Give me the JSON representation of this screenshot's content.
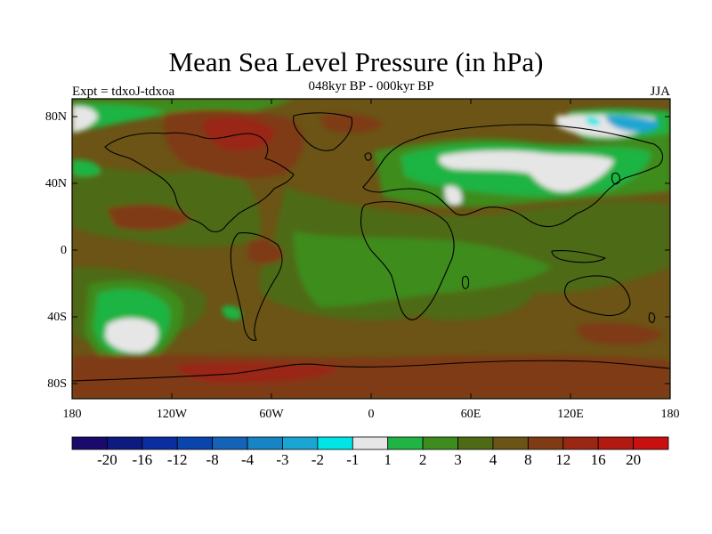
{
  "title": "Mean Sea Level Pressure (in hPa)",
  "subtitle": "048kyr BP - 000kyr BP",
  "left_label": "Expt = tdxoJ-tdxoa",
  "right_label": "JJA",
  "map": {
    "lat_ticks": [
      "80N",
      "40N",
      "0",
      "40S",
      "80S"
    ],
    "lon_ticks": [
      "180",
      "120W",
      "60W",
      "0",
      "60E",
      "120E",
      "180"
    ]
  },
  "colorbar": {
    "colors": [
      "#1a0a6b",
      "#0d1a80",
      "#0a2ea0",
      "#0a44ad",
      "#1463b8",
      "#1784c5",
      "#1aa6d2",
      "#00e5e5",
      "#e6e6e6",
      "#1fb443",
      "#3e8c1e",
      "#4e6a14",
      "#6b5416",
      "#7f3b14",
      "#992713",
      "#b01a10",
      "#c81010"
    ],
    "labels": [
      "-20",
      "-16",
      "-12",
      "-8",
      "-4",
      "-3",
      "-2",
      "-1",
      "1",
      "2",
      "3",
      "4",
      "8",
      "12",
      "16",
      "20"
    ]
  },
  "palette": {
    "ocean_base": "#6b5416",
    "green_dark": "#4e6a14",
    "green_mid": "#3e8c1e",
    "green_bright": "#1fb443",
    "white": "#e6e6e6",
    "red_brown": "#7f3b14",
    "red": "#992713",
    "cyan": "#1aa6d2",
    "cyan_light": "#00e5e5"
  }
}
